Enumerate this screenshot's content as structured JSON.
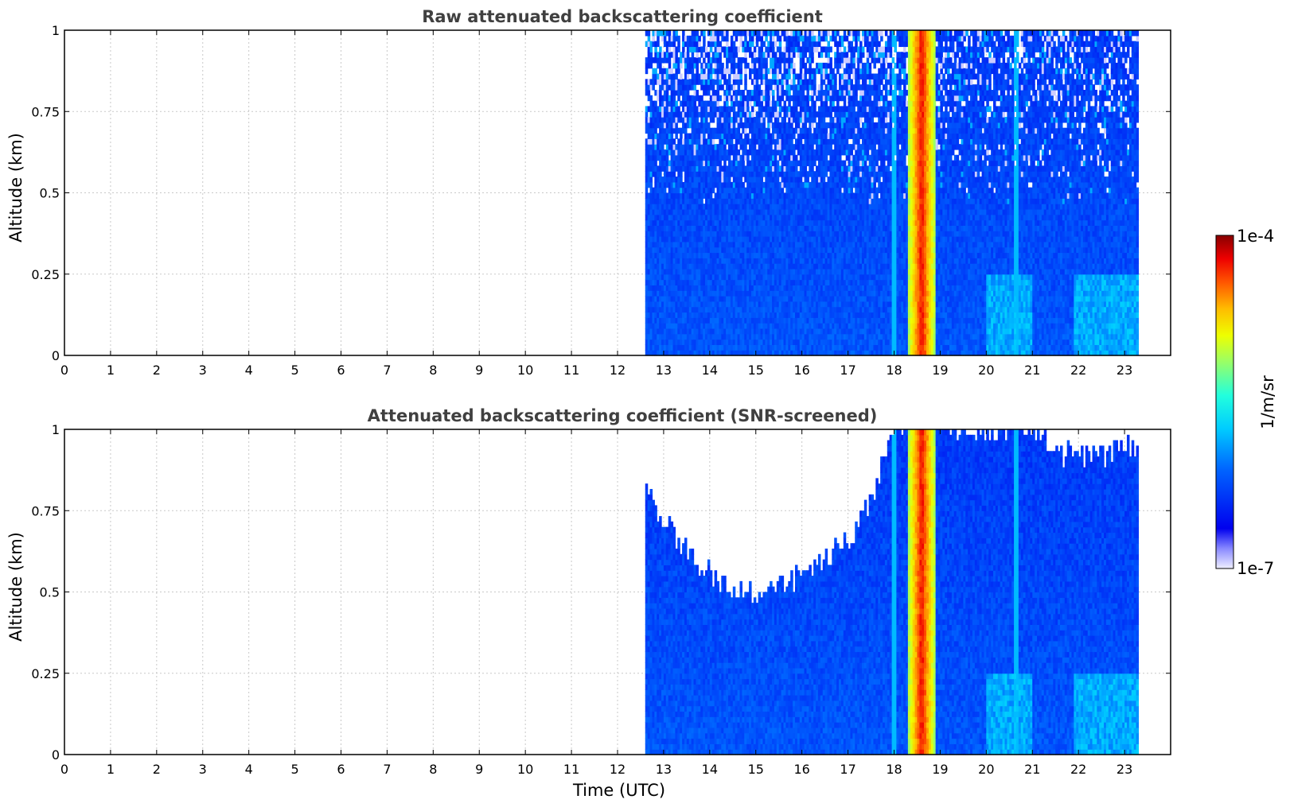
{
  "chart_data": [
    {
      "type": "heatmap",
      "title": "Raw attenuated backscattering coefficient",
      "xlabel": "",
      "ylabel": "Altitude (km)",
      "xlim": [
        0,
        24
      ],
      "ylim": [
        0,
        1
      ],
      "x_ticks": [
        0,
        1,
        2,
        3,
        4,
        5,
        6,
        7,
        8,
        9,
        10,
        11,
        12,
        13,
        14,
        15,
        16,
        17,
        18,
        19,
        20,
        21,
        22,
        23
      ],
      "y_ticks": [
        "0",
        "0.25",
        "0.5",
        "0.75",
        "1"
      ],
      "grid": true,
      "data_time_range": [
        12.6,
        23.3
      ],
      "screened": false,
      "features": [
        {
          "kind": "strong_return_band",
          "x_range": [
            18.3,
            18.9
          ],
          "level": "high"
        },
        {
          "kind": "thin_vertical_streak",
          "x": 18.0,
          "level": "medium"
        },
        {
          "kind": "thin_vertical_streak",
          "x": 20.65,
          "level": "medium"
        },
        {
          "kind": "low_plume",
          "x_range": [
            20.0,
            21.0
          ],
          "alt_range": [
            0,
            0.25
          ],
          "level": "medium"
        },
        {
          "kind": "low_plume",
          "x_range": [
            21.9,
            23.3
          ],
          "alt_range": [
            0,
            0.25
          ],
          "level": "medium"
        }
      ]
    },
    {
      "type": "heatmap",
      "title": "Attenuated backscattering coefficient (SNR-screened)",
      "xlabel": "Time (UTC)",
      "ylabel": "Altitude (km)",
      "xlim": [
        0,
        24
      ],
      "ylim": [
        0,
        1
      ],
      "x_ticks": [
        0,
        1,
        2,
        3,
        4,
        5,
        6,
        7,
        8,
        9,
        10,
        11,
        12,
        13,
        14,
        15,
        16,
        17,
        18,
        19,
        20,
        21,
        22,
        23
      ],
      "y_ticks": [
        "0",
        "0.25",
        "0.5",
        "0.75",
        "1"
      ],
      "grid": true,
      "data_time_range": [
        12.6,
        23.3
      ],
      "screened": true,
      "screen_boundary": {
        "x": [
          12.6,
          13.0,
          13.5,
          14.0,
          14.5,
          15.0,
          15.5,
          16.0,
          16.5,
          17.0,
          17.5,
          18.0,
          19.0,
          20.0,
          21.0,
          21.5,
          22.0,
          22.5,
          23.0,
          23.3
        ],
        "alt": [
          0.8,
          0.72,
          0.62,
          0.56,
          0.5,
          0.5,
          0.52,
          0.55,
          0.6,
          0.66,
          0.78,
          1.0,
          1.0,
          1.0,
          1.0,
          0.93,
          0.92,
          0.92,
          0.94,
          0.96
        ]
      },
      "features": [
        {
          "kind": "strong_return_band",
          "x_range": [
            18.3,
            18.9
          ],
          "level": "high"
        },
        {
          "kind": "thin_vertical_streak",
          "x": 18.0,
          "level": "medium"
        },
        {
          "kind": "thin_vertical_streak",
          "x": 20.65,
          "level": "medium"
        },
        {
          "kind": "low_plume",
          "x_range": [
            20.0,
            21.0
          ],
          "alt_range": [
            0,
            0.25
          ],
          "level": "medium"
        },
        {
          "kind": "low_plume",
          "x_range": [
            21.9,
            23.3
          ],
          "alt_range": [
            0,
            0.25
          ],
          "level": "medium"
        }
      ]
    }
  ],
  "colorbar": {
    "max_label": "1e-4",
    "min_label": "1e-7",
    "label": "1/m/sr",
    "scale": "log",
    "colormap": "jet",
    "range": [
      1e-07,
      0.0001
    ]
  }
}
